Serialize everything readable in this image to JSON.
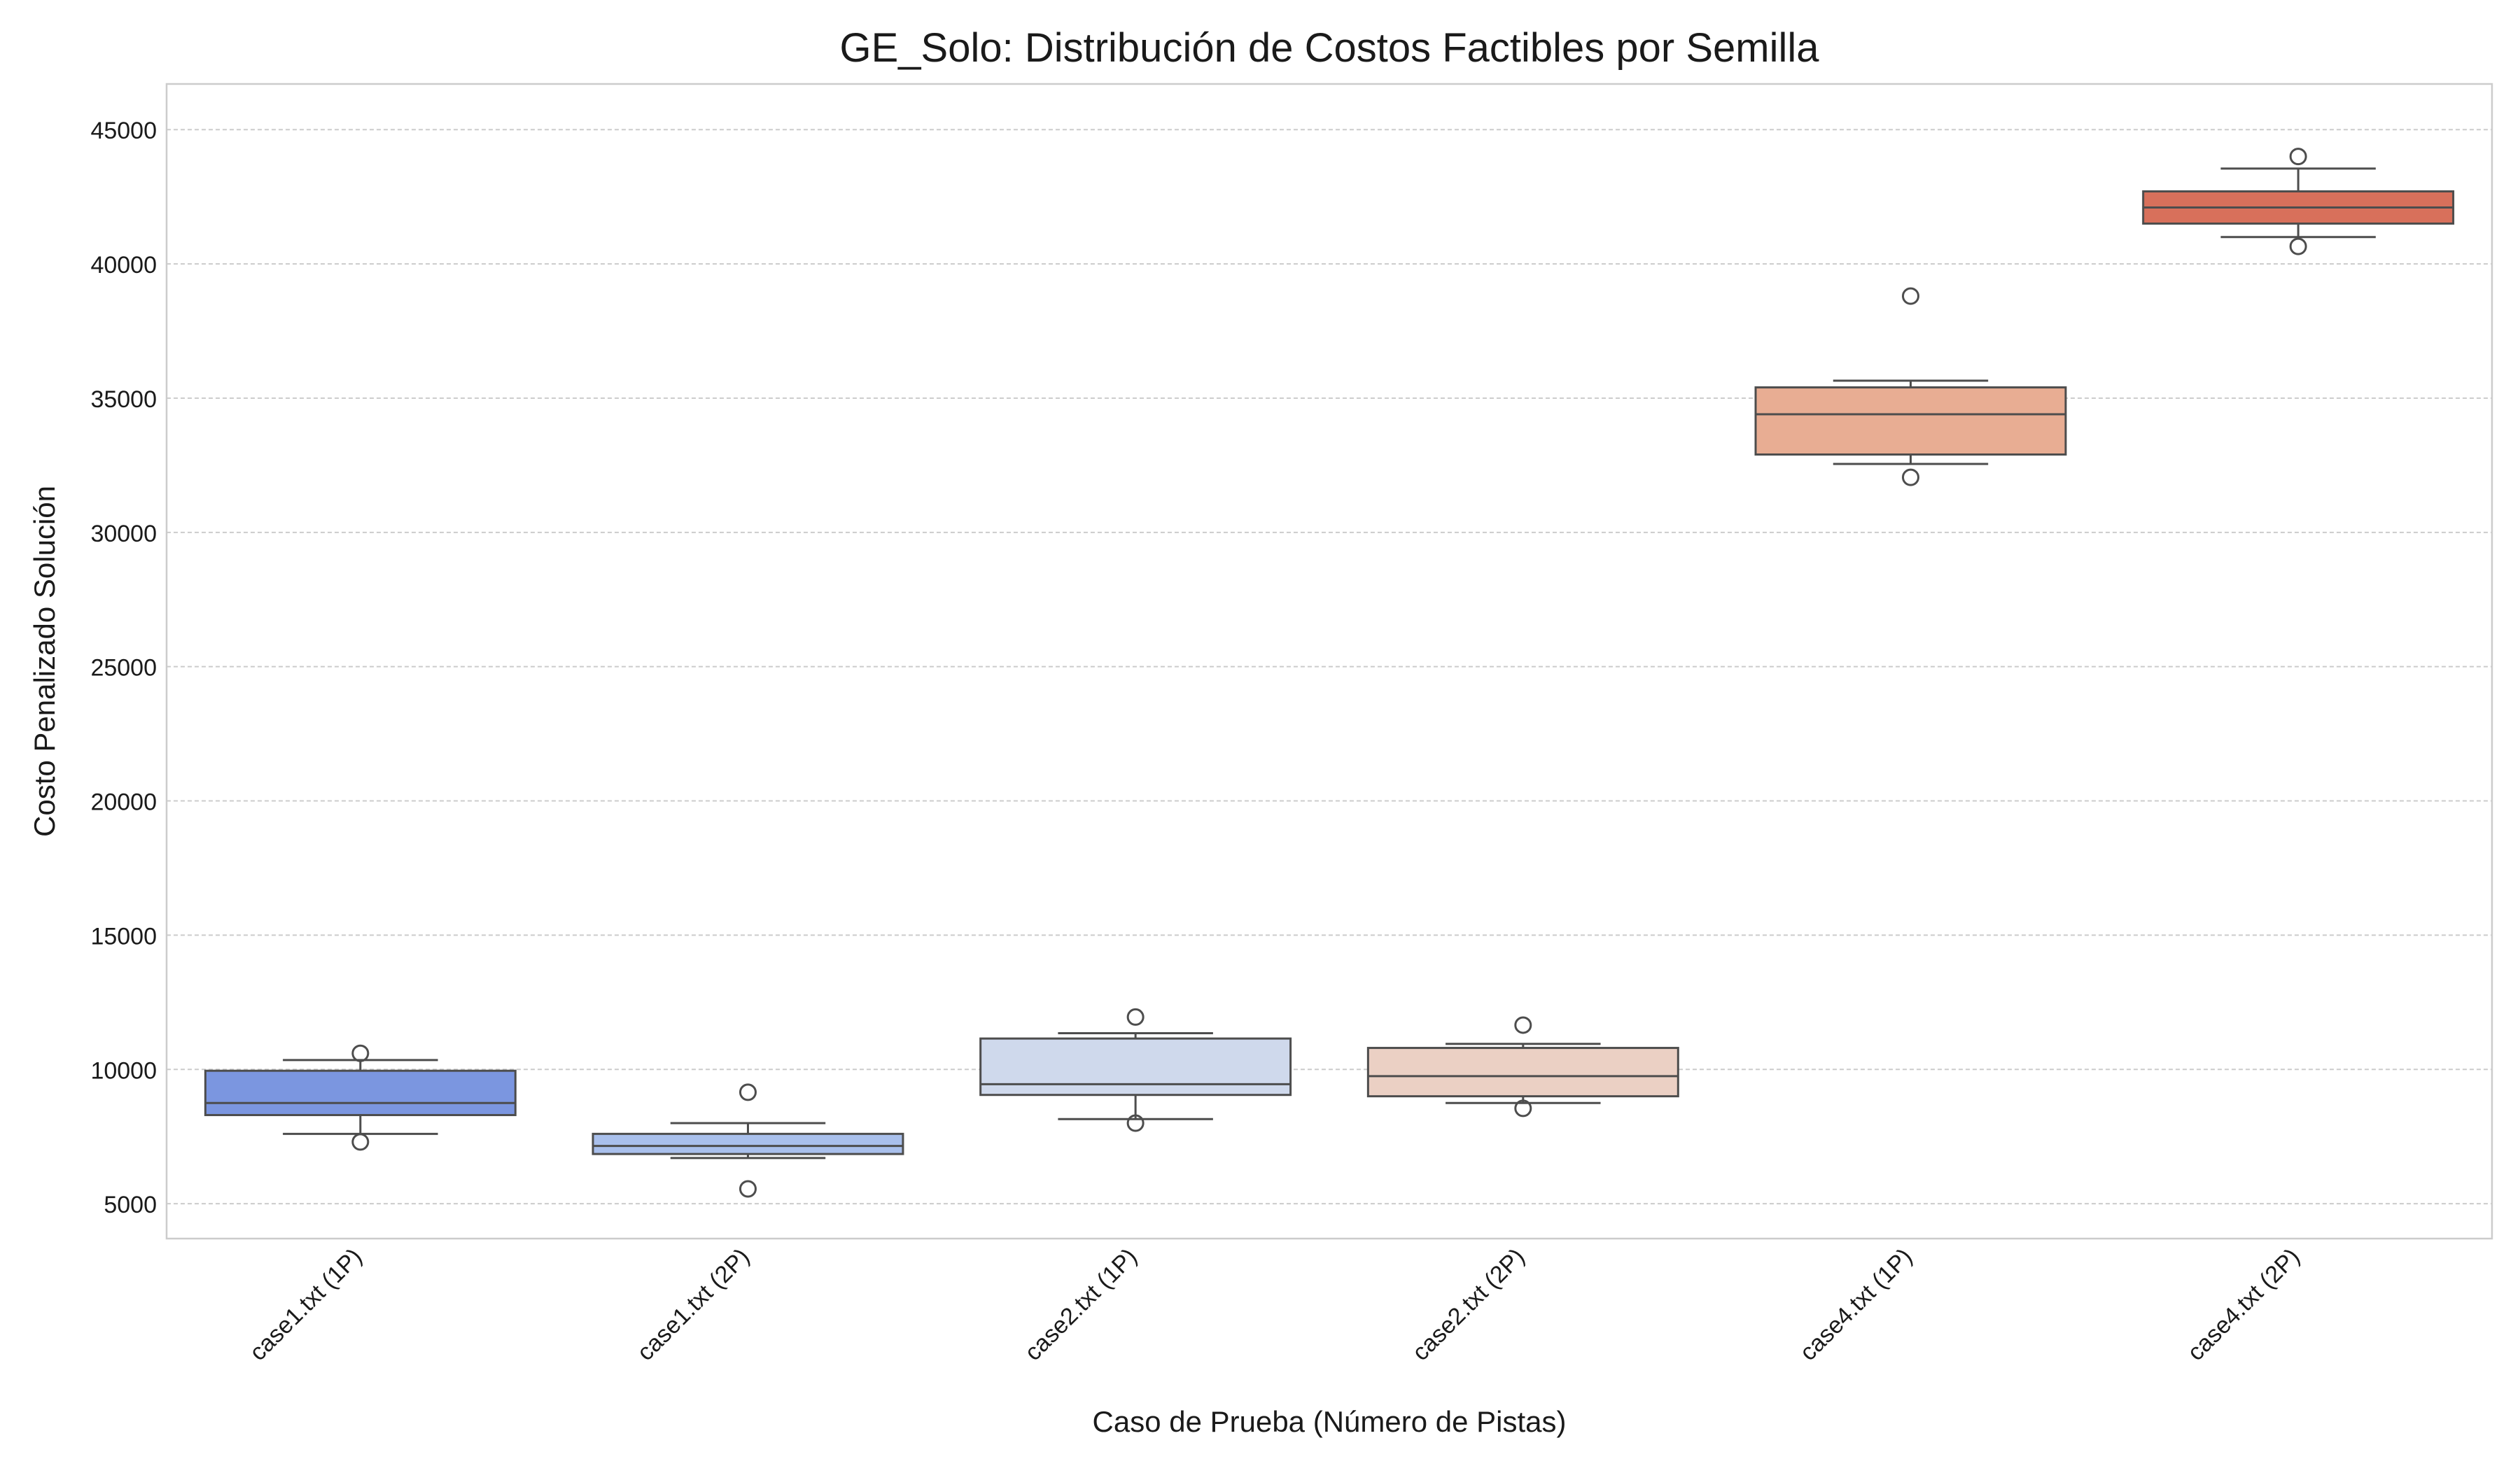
{
  "chart_data": {
    "type": "box",
    "title": "GE_Solo: Distribución de Costos Factibles por Semilla",
    "xlabel": "Caso de Prueba (Número de Pistas)",
    "ylabel": "Costo Penalizado Solución",
    "ylim": [
      3700,
      46700
    ],
    "yticks": [
      5000,
      10000,
      15000,
      20000,
      25000,
      30000,
      35000,
      40000,
      45000
    ],
    "grid": "horizontal-dashed",
    "categories": [
      "case1.txt (1P)",
      "case1.txt (2P)",
      "case2.txt (1P)",
      "case2.txt (2P)",
      "case4.txt (1P)",
      "case4.txt (2P)"
    ],
    "boxes": [
      {
        "category": "case1.txt (1P)",
        "whisker_low": 7600,
        "q1": 8300,
        "median": 8750,
        "q3": 9950,
        "whisker_high": 10350,
        "outliers": [
          7300,
          10600
        ],
        "color": "#7b96e0"
      },
      {
        "category": "case1.txt (2P)",
        "whisker_low": 6700,
        "q1": 6850,
        "median": 7150,
        "q3": 7600,
        "whisker_high": 8000,
        "outliers": [
          5550,
          9150
        ],
        "color": "#a9c0ec"
      },
      {
        "category": "case2.txt (1P)",
        "whisker_low": 8150,
        "q1": 9050,
        "median": 9450,
        "q3": 11150,
        "whisker_high": 11350,
        "outliers": [
          8000,
          11950
        ],
        "color": "#cfd9ec"
      },
      {
        "category": "case2.txt (2P)",
        "whisker_low": 8750,
        "q1": 9000,
        "median": 9750,
        "q3": 10800,
        "whisker_high": 10950,
        "outliers": [
          8550,
          11650
        ],
        "color": "#ebd0c4"
      },
      {
        "category": "case4.txt (1P)",
        "whisker_low": 32550,
        "q1": 32900,
        "median": 34400,
        "q3": 35400,
        "whisker_high": 35650,
        "outliers": [
          32050,
          38800
        ],
        "color": "#e8ad93"
      },
      {
        "category": "case4.txt (2P)",
        "whisker_low": 41000,
        "q1": 41500,
        "median": 42100,
        "q3": 42700,
        "whisker_high": 43550,
        "outliers": [
          40650,
          44000
        ],
        "color": "#d8705b"
      }
    ]
  }
}
